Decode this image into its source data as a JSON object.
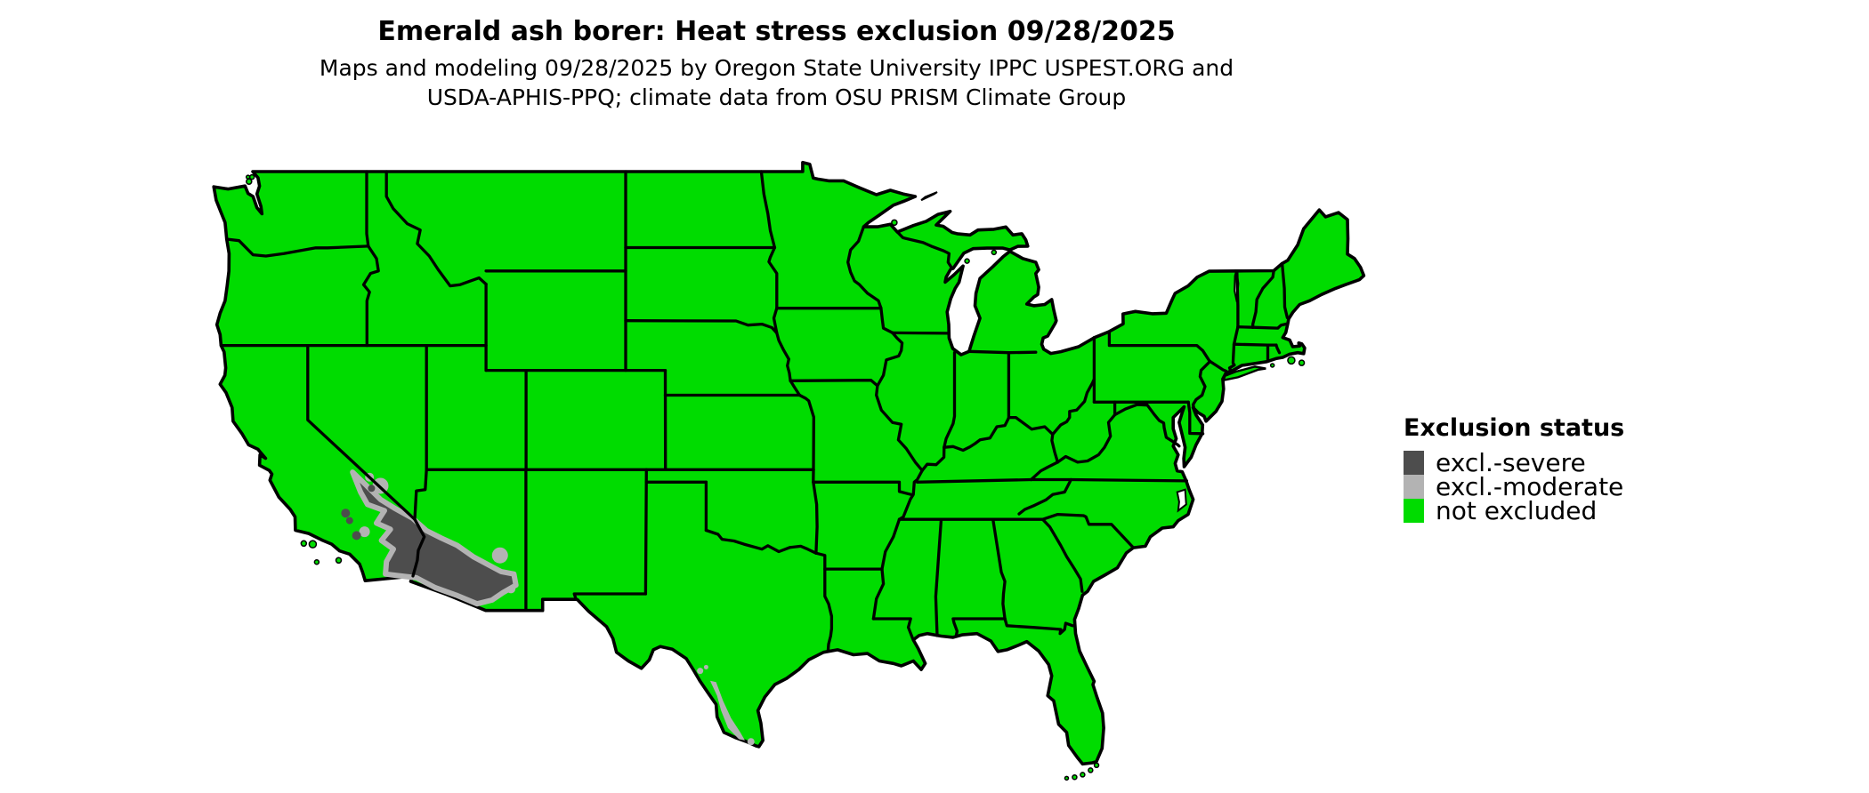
{
  "title": "Emerald ash borer: Heat stress exclusion 09/28/2025",
  "subtitle_line1": "Maps and modeling 09/28/2025 by Oregon State University IPPC USPEST.ORG and",
  "subtitle_line2": "USDA-APHIS-PPQ; climate data from OSU PRISM Climate Group",
  "legend": {
    "title": "Exclusion status",
    "items": [
      {
        "label": "excl.-severe",
        "color": "#4d4d4d"
      },
      {
        "label": "excl.-moderate",
        "color": "#b3b3b3"
      },
      {
        "label": "not excluded",
        "color": "#00dc00"
      }
    ]
  },
  "map": {
    "region": "Contiguous United States with state boundaries",
    "border_color": "#000000",
    "water_color": "#ffffff",
    "excluded_areas": [
      {
        "area": "Southwestern Arizona and southeastern California deserts",
        "status": "excl.-severe with excl.-moderate fringe"
      },
      {
        "area": "Lower Rio Grande valley, south Texas",
        "status": "excl.-moderate"
      }
    ]
  }
}
